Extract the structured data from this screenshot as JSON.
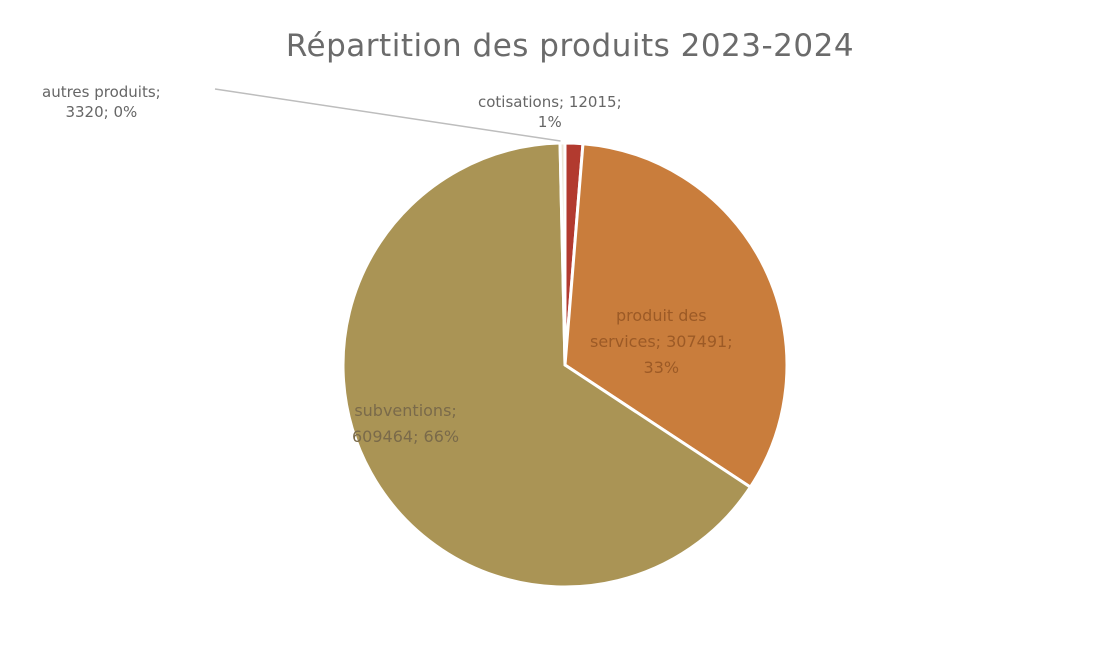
{
  "chart_data": {
    "type": "pie",
    "title": "Répartition des produits 2023-2024",
    "slices": [
      {
        "name": "cotisations",
        "value": 12015,
        "percent_label": "1%",
        "label_lines": [
          "cotisations; 12015;",
          "1%"
        ],
        "color": "#b23a2f"
      },
      {
        "name": "produit des services",
        "value": 307491,
        "percent_label": "33%",
        "label_lines": [
          "produit des",
          "services; 307491;",
          "33%"
        ],
        "color": "#c97d3c"
      },
      {
        "name": "subventions",
        "value": 609464,
        "percent_label": "66%",
        "label_lines": [
          "subventions;",
          "609464; 66%"
        ],
        "color": "#aa9455"
      },
      {
        "name": "autres produits",
        "value": 3320,
        "percent_label": "0%",
        "label_lines": [
          "autres produits;",
          "3320; 0%"
        ],
        "color": "#ece6d6"
      }
    ],
    "legend": "none",
    "data_labels": "category; value; percent"
  }
}
